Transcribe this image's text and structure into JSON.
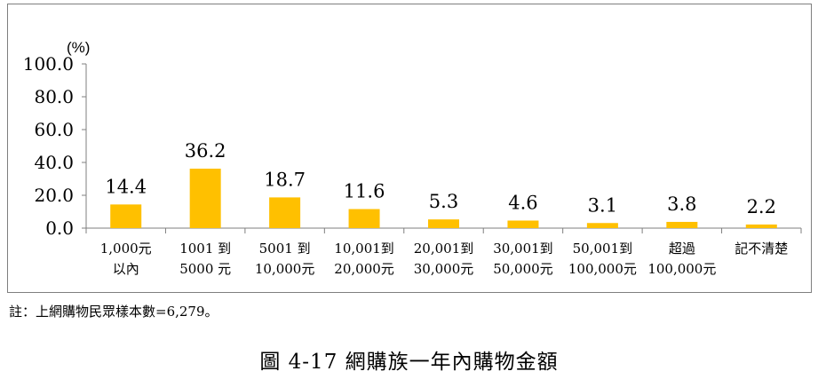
{
  "chart_data": {
    "type": "bar",
    "categories": [
      [
        "1,000元",
        "以內"
      ],
      [
        "1001 到",
        "5000 元"
      ],
      [
        "5001 到",
        "10,000元"
      ],
      [
        "10,001到",
        "20,000元"
      ],
      [
        "20,001到",
        "30,000元"
      ],
      [
        "30,001到",
        "50,000元"
      ],
      [
        "50,001到",
        "100,000元"
      ],
      [
        "超過",
        "100,000元"
      ],
      [
        "記不清楚",
        ""
      ]
    ],
    "values": [
      14.4,
      36.2,
      18.7,
      11.6,
      5.3,
      4.6,
      3.1,
      3.8,
      2.2
    ],
    "value_labels": [
      "14.4",
      "36.2",
      "18.7",
      "11.6",
      "5.3",
      "4.6",
      "3.1",
      "3.8",
      "2.2"
    ],
    "y_ticks": [
      "0.0",
      "20.0",
      "40.0",
      "60.0",
      "80.0",
      "100.0"
    ],
    "ylim": [
      0,
      100
    ],
    "yunit": "(%)",
    "bar_color": "#ffc000",
    "grid": false,
    "legend": "none"
  },
  "note": "註：上網購物民眾樣本數=6,279。",
  "caption": "圖 4-17  網購族一年內購物金額"
}
